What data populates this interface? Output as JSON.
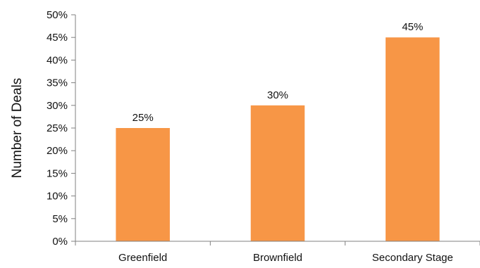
{
  "chart_data": {
    "type": "bar",
    "title": "",
    "xlabel": "",
    "ylabel": "Number of Deals",
    "categories": [
      "Greenfield",
      "Brownfield",
      "Secondary Stage"
    ],
    "values": [
      25,
      30,
      45
    ],
    "data_labels": [
      "25%",
      "30%",
      "45%"
    ],
    "ylim": [
      0,
      50
    ],
    "yticks": [
      0,
      5,
      10,
      15,
      20,
      25,
      30,
      35,
      40,
      45,
      50
    ],
    "ytick_labels": [
      "0%",
      "5%",
      "10%",
      "15%",
      "20%",
      "25%",
      "30%",
      "35%",
      "40%",
      "45%",
      "50%"
    ],
    "gridlines": false,
    "legend": "none",
    "bar_color": "#f79646"
  }
}
